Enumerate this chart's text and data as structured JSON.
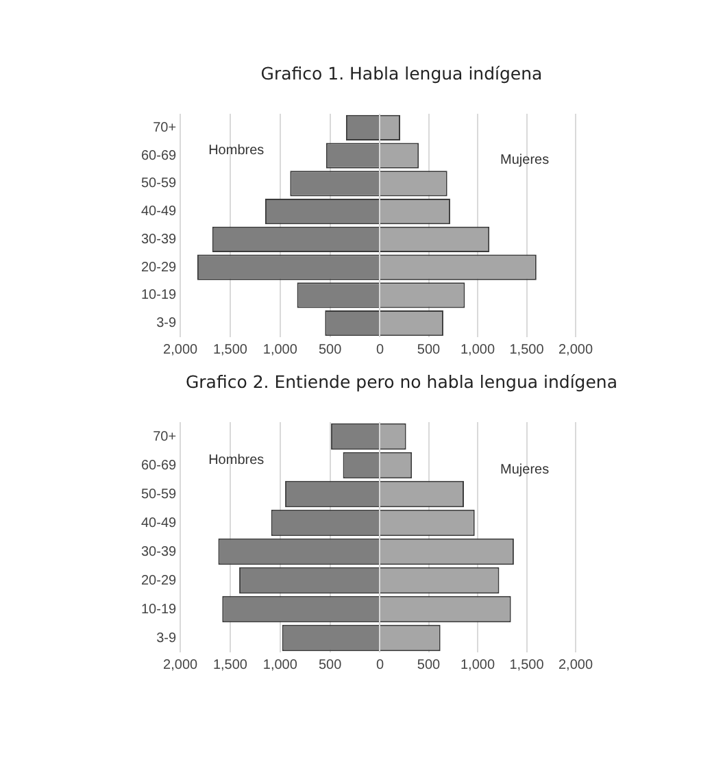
{
  "chart_data": [
    {
      "type": "bar",
      "orientation": "horizontal",
      "title": "Grafico 1. Habla lengua indígena",
      "categories": [
        "70+",
        "60-69",
        "50-59",
        "40-49",
        "30-39",
        "20-29",
        "10-19",
        "3-9"
      ],
      "series": [
        {
          "name": "Hombres",
          "color": "#7f7f7f",
          "values": [
            340,
            540,
            900,
            1150,
            1680,
            1830,
            830,
            550
          ]
        }
      ],
      "xlim": [
        2000,
        0
      ],
      "xticks": [
        {
          "value": 2000,
          "label": "2,000"
        },
        {
          "value": 1500,
          "label": "1,500"
        },
        {
          "value": 1000,
          "label": "1,000"
        },
        {
          "value": 500,
          "label": "500"
        },
        {
          "value": 0,
          "label": "0"
        }
      ],
      "grid": "x",
      "legend": false
    },
    {
      "type": "bar",
      "orientation": "horizontal",
      "categories": [
        null,
        null,
        null,
        null,
        null,
        null,
        null,
        null
      ],
      "series": [
        {
          "name": "Mujeres",
          "color": "#a6a6a6",
          "values": [
            210,
            400,
            690,
            720,
            1120,
            1600,
            870,
            650
          ]
        }
      ],
      "xlim": [
        0,
        2000
      ],
      "xticks": [
        {
          "value": 0,
          "label": null
        },
        {
          "value": 500,
          "label": "500"
        },
        {
          "value": 1000,
          "label": "1,000"
        },
        {
          "value": 1500,
          "label": "1,500"
        },
        {
          "value": 2000,
          "label": "2,000"
        }
      ],
      "grid": "x",
      "legend": false,
      "tick_labels": "x"
    },
    {
      "type": "bar",
      "orientation": "horizontal",
      "title": "Grafico 2. Entiende pero no habla lengua indígena",
      "categories": [
        "70+",
        "60-69",
        "50-59",
        "40-49",
        "30-39",
        "20-29",
        "10-19",
        "3-9"
      ],
      "series": [
        {
          "name": "Hombres",
          "color": "#7f7f7f",
          "values": [
            490,
            370,
            950,
            1090,
            1620,
            1410,
            1580,
            980
          ]
        }
      ],
      "xlim": [
        2000,
        0
      ],
      "xticks": [
        {
          "value": 2000,
          "label": "2,000"
        },
        {
          "value": 1500,
          "label": "1,500"
        },
        {
          "value": 1000,
          "label": "1,000"
        },
        {
          "value": 500,
          "label": "500"
        },
        {
          "value": 0,
          "label": "0"
        }
      ],
      "grid": "x",
      "legend": false
    },
    {
      "type": "bar",
      "orientation": "horizontal",
      "categories": [
        null,
        null,
        null,
        null,
        null,
        null,
        null,
        null
      ],
      "series": [
        {
          "name": "Mujeres",
          "color": "#a6a6a6",
          "values": [
            270,
            330,
            860,
            970,
            1370,
            1220,
            1340,
            620
          ]
        }
      ],
      "xlim": [
        0,
        2000
      ],
      "xticks": [
        {
          "value": 0,
          "label": null
        },
        {
          "value": 500,
          "label": "500"
        },
        {
          "value": 1000,
          "label": "1,000"
        },
        {
          "value": 1500,
          "label": "1,500"
        },
        {
          "value": 2000,
          "label": "2,000"
        }
      ],
      "grid": "x",
      "legend": false,
      "tick_labels": "x"
    }
  ]
}
